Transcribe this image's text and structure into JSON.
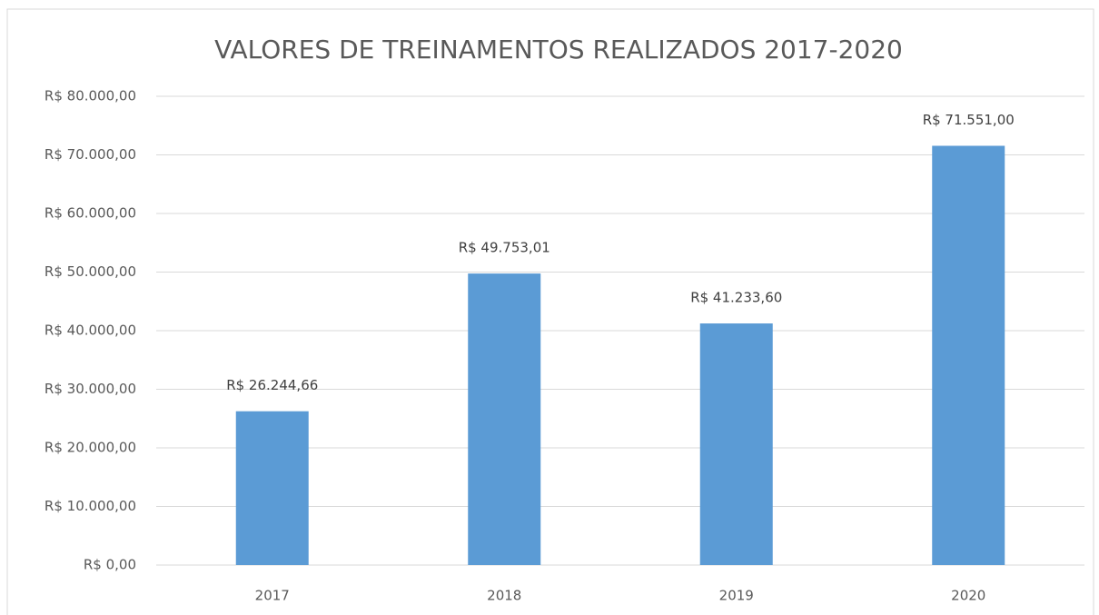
{
  "chart_data": {
    "type": "bar",
    "title": "VALORES DE TREINAMENTOS REALIZADOS 2017-2020",
    "categories": [
      "2017",
      "2018",
      "2019",
      "2020"
    ],
    "values": [
      26244.66,
      49753.01,
      41233.6,
      71551.0
    ],
    "value_labels": [
      "R$ 26.244,66",
      "R$ 49.753,01",
      "R$ 41.233,60",
      "R$ 71.551,00"
    ],
    "color": "#5b9bd5",
    "ylim": [
      0,
      80000
    ],
    "yticks": [
      {
        "value": 0,
        "label": "R$ 0,00"
      },
      {
        "value": 10000,
        "label": "R$ 10.000,00"
      },
      {
        "value": 20000,
        "label": "R$ 20.000,00"
      },
      {
        "value": 30000,
        "label": "R$ 30.000,00"
      },
      {
        "value": 40000,
        "label": "R$ 40.000,00"
      },
      {
        "value": 50000,
        "label": "R$ 50.000,00"
      },
      {
        "value": 60000,
        "label": "R$ 60.000,00"
      },
      {
        "value": 70000,
        "label": "R$ 70.000,00"
      },
      {
        "value": 80000,
        "label": "R$ 80.000,00"
      }
    ],
    "grid": true
  }
}
